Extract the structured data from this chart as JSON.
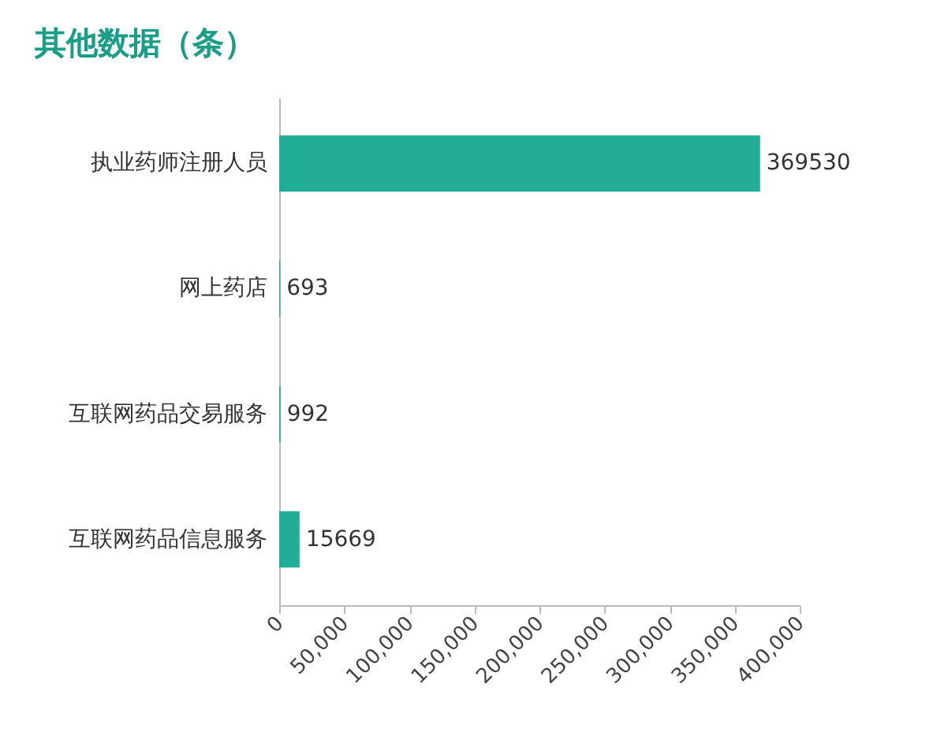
{
  "chart_data": {
    "type": "bar",
    "orientation": "horizontal",
    "title": "其他数据（条）",
    "categories": [
      "执业药师注册人员",
      "网上药店",
      "互联网药品交易服务",
      "互联网药品信息服务"
    ],
    "values": [
      369530,
      693,
      992,
      15669
    ],
    "color": "#22ae94",
    "data_labels": true,
    "grid": false,
    "xlim": [
      0,
      400000
    ],
    "xticks": [
      0,
      {
        "value": 50000,
        "label": "50,000"
      },
      {
        "value": 100000,
        "label": "100,000"
      },
      {
        "value": 150000,
        "label": "150,000"
      },
      {
        "value": 200000,
        "label": "200,000"
      },
      {
        "value": 250000,
        "label": "250,000"
      },
      {
        "value": 300000,
        "label": "300,000"
      },
      {
        "value": 350000,
        "label": "350,000"
      },
      {
        "value": 400000,
        "label": "400,000"
      }
    ]
  }
}
